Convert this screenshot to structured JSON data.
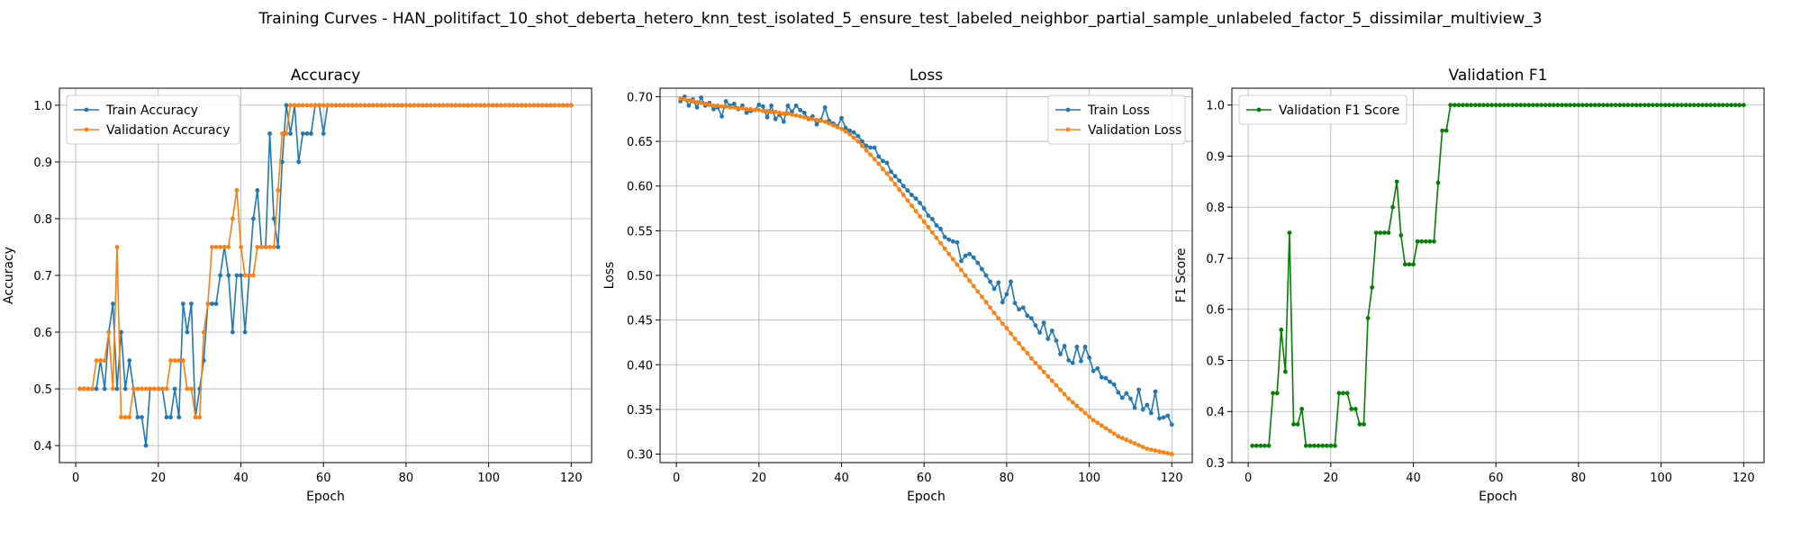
{
  "suptitle": "Training Curves - HAN_politifact_10_shot_deberta_hetero_knn_test_isolated_5_ensure_test_labeled_neighbor_partial_sample_unlabeled_factor_5_dissimilar_multiview_3",
  "colors": {
    "train": "#1f77b4",
    "validation": "#ff7f0e",
    "f1": "#008000",
    "grid": "#b0b0b0"
  },
  "chart_data": [
    {
      "type": "line",
      "title": "Accuracy",
      "xlabel": "Epoch",
      "ylabel": "Accuracy",
      "xlim": [
        -3.95,
        124.95
      ],
      "ylim": [
        0.37,
        1.03
      ],
      "xticks": [
        0,
        20,
        40,
        60,
        80,
        100,
        120
      ],
      "yticks": [
        0.4,
        0.5,
        0.6,
        0.7,
        0.8,
        0.9,
        1.0
      ],
      "ytick_labels": [
        "0.4",
        "0.5",
        "0.6",
        "0.7",
        "0.8",
        "0.9",
        "1.0"
      ],
      "grid": true,
      "legend_loc": "upper left",
      "x_start": 1,
      "series": [
        {
          "name": "Train Accuracy",
          "color": "#1f77b4",
          "values": [
            0.5,
            0.5,
            0.5,
            0.5,
            0.5,
            0.55,
            0.5,
            0.6,
            0.65,
            0.5,
            0.6,
            0.5,
            0.55,
            0.5,
            0.45,
            0.45,
            0.4,
            0.5,
            0.5,
            0.5,
            0.5,
            0.45,
            0.45,
            0.5,
            0.45,
            0.65,
            0.6,
            0.65,
            0.45,
            0.5,
            0.55,
            0.65,
            0.65,
            0.65,
            0.7,
            0.75,
            0.7,
            0.6,
            0.7,
            0.7,
            0.6,
            0.7,
            0.8,
            0.85,
            0.75,
            0.75,
            0.95,
            0.8,
            0.75,
            0.9,
            1.0,
            0.95,
            1.0,
            0.9,
            0.95,
            0.95,
            0.95,
            1.0,
            1.0,
            0.95,
            1.0,
            1.0,
            1.0,
            1.0,
            1.0,
            1.0,
            1.0,
            1.0,
            1.0,
            1.0,
            1.0,
            1.0,
            1.0,
            1.0,
            1.0,
            1.0,
            1.0,
            1.0,
            1.0,
            1.0,
            1.0,
            1.0,
            1.0,
            1.0,
            1.0,
            1.0,
            1.0,
            1.0,
            1.0,
            1.0,
            1.0,
            1.0,
            1.0,
            1.0,
            1.0,
            1.0,
            1.0,
            1.0,
            1.0,
            1.0,
            1.0,
            1.0,
            1.0,
            1.0,
            1.0,
            1.0,
            1.0,
            1.0,
            1.0,
            1.0,
            1.0,
            1.0,
            1.0,
            1.0,
            1.0,
            1.0,
            1.0,
            1.0,
            1.0,
            1.0
          ]
        },
        {
          "name": "Validation Accuracy",
          "color": "#ff7f0e",
          "values": [
            0.5,
            0.5,
            0.5,
            0.5,
            0.55,
            0.55,
            0.55,
            0.6,
            0.5,
            0.75,
            0.45,
            0.45,
            0.45,
            0.5,
            0.5,
            0.5,
            0.5,
            0.5,
            0.5,
            0.5,
            0.5,
            0.5,
            0.55,
            0.55,
            0.55,
            0.55,
            0.5,
            0.5,
            0.45,
            0.45,
            0.6,
            0.65,
            0.75,
            0.75,
            0.75,
            0.75,
            0.75,
            0.8,
            0.85,
            0.75,
            0.7,
            0.7,
            0.7,
            0.75,
            0.75,
            0.75,
            0.75,
            0.75,
            0.85,
            0.95,
            0.95,
            1.0,
            1.0,
            1.0,
            1.0,
            1.0,
            1.0,
            1.0,
            1.0,
            1.0,
            1.0,
            1.0,
            1.0,
            1.0,
            1.0,
            1.0,
            1.0,
            1.0,
            1.0,
            1.0,
            1.0,
            1.0,
            1.0,
            1.0,
            1.0,
            1.0,
            1.0,
            1.0,
            1.0,
            1.0,
            1.0,
            1.0,
            1.0,
            1.0,
            1.0,
            1.0,
            1.0,
            1.0,
            1.0,
            1.0,
            1.0,
            1.0,
            1.0,
            1.0,
            1.0,
            1.0,
            1.0,
            1.0,
            1.0,
            1.0,
            1.0,
            1.0,
            1.0,
            1.0,
            1.0,
            1.0,
            1.0,
            1.0,
            1.0,
            1.0,
            1.0,
            1.0,
            1.0,
            1.0,
            1.0,
            1.0,
            1.0,
            1.0,
            1.0,
            1.0
          ]
        }
      ]
    },
    {
      "type": "line",
      "title": "Loss",
      "xlabel": "Epoch",
      "ylabel": "Loss",
      "xlim": [
        -3.95,
        124.95
      ],
      "ylim": [
        0.2905,
        0.7095
      ],
      "xticks": [
        0,
        20,
        40,
        60,
        80,
        100,
        120
      ],
      "yticks": [
        0.3,
        0.35,
        0.4,
        0.45,
        0.5,
        0.55,
        0.6,
        0.65,
        0.7
      ],
      "ytick_labels": [
        "0.30",
        "0.35",
        "0.40",
        "0.45",
        "0.50",
        "0.55",
        "0.60",
        "0.65",
        "0.70"
      ],
      "grid": true,
      "legend_loc": "upper right",
      "x_start": 1,
      "series": [
        {
          "name": "Train Loss",
          "color": "#1f77b4",
          "values": [
            0.695,
            0.7,
            0.69,
            0.697,
            0.688,
            0.699,
            0.69,
            0.693,
            0.686,
            0.688,
            0.678,
            0.695,
            0.69,
            0.692,
            0.686,
            0.69,
            0.682,
            0.684,
            0.685,
            0.691,
            0.689,
            0.677,
            0.69,
            0.675,
            0.68,
            0.672,
            0.69,
            0.683,
            0.69,
            0.685,
            0.682,
            0.675,
            0.678,
            0.669,
            0.674,
            0.688,
            0.673,
            0.67,
            0.667,
            0.676,
            0.665,
            0.662,
            0.66,
            0.656,
            0.65,
            0.645,
            0.643,
            0.643,
            0.633,
            0.628,
            0.626,
            0.616,
            0.611,
            0.606,
            0.6,
            0.595,
            0.59,
            0.586,
            0.581,
            0.575,
            0.567,
            0.563,
            0.556,
            0.552,
            0.543,
            0.54,
            0.538,
            0.537,
            0.516,
            0.522,
            0.524,
            0.52,
            0.514,
            0.507,
            0.5,
            0.493,
            0.485,
            0.492,
            0.47,
            0.479,
            0.493,
            0.469,
            0.462,
            0.464,
            0.455,
            0.452,
            0.444,
            0.436,
            0.447,
            0.429,
            0.438,
            0.427,
            0.412,
            0.421,
            0.405,
            0.402,
            0.42,
            0.404,
            0.42,
            0.408,
            0.393,
            0.396,
            0.386,
            0.385,
            0.381,
            0.378,
            0.369,
            0.363,
            0.368,
            0.362,
            0.352,
            0.372,
            0.35,
            0.355,
            0.346,
            0.37,
            0.34,
            0.341,
            0.343,
            0.333
          ]
        },
        {
          "name": "Validation Loss",
          "color": "#ff7f0e",
          "values": [
            0.698,
            0.697,
            0.696,
            0.695,
            0.694,
            0.693,
            0.692,
            0.691,
            0.69,
            0.69,
            0.689,
            0.689,
            0.688,
            0.688,
            0.687,
            0.687,
            0.686,
            0.686,
            0.685,
            0.685,
            0.684,
            0.684,
            0.683,
            0.683,
            0.682,
            0.681,
            0.681,
            0.68,
            0.679,
            0.678,
            0.677,
            0.676,
            0.675,
            0.674,
            0.673,
            0.672,
            0.67,
            0.668,
            0.666,
            0.664,
            0.661,
            0.658,
            0.654,
            0.65,
            0.645,
            0.64,
            0.635,
            0.63,
            0.625,
            0.619,
            0.614,
            0.608,
            0.602,
            0.596,
            0.59,
            0.584,
            0.578,
            0.572,
            0.566,
            0.56,
            0.554,
            0.548,
            0.542,
            0.536,
            0.53,
            0.524,
            0.518,
            0.512,
            0.506,
            0.5,
            0.494,
            0.488,
            0.482,
            0.476,
            0.47,
            0.464,
            0.458,
            0.452,
            0.446,
            0.441,
            0.435,
            0.429,
            0.424,
            0.418,
            0.413,
            0.407,
            0.402,
            0.397,
            0.392,
            0.387,
            0.382,
            0.377,
            0.372,
            0.367,
            0.362,
            0.358,
            0.354,
            0.35,
            0.346,
            0.342,
            0.338,
            0.335,
            0.332,
            0.329,
            0.326,
            0.323,
            0.32,
            0.318,
            0.316,
            0.314,
            0.312,
            0.31,
            0.308,
            0.306,
            0.305,
            0.304,
            0.303,
            0.302,
            0.301,
            0.3
          ]
        }
      ]
    },
    {
      "type": "line",
      "title": "Validation F1",
      "xlabel": "Epoch",
      "ylabel": "F1 Score",
      "xlim": [
        -3.95,
        124.95
      ],
      "ylim": [
        0.3,
        1.033
      ],
      "xticks": [
        0,
        20,
        40,
        60,
        80,
        100,
        120
      ],
      "yticks": [
        0.3,
        0.4,
        0.5,
        0.6,
        0.7,
        0.8,
        0.9,
        1.0
      ],
      "ytick_labels": [
        "0.3",
        "0.4",
        "0.5",
        "0.6",
        "0.7",
        "0.8",
        "0.9",
        "1.0"
      ],
      "grid": true,
      "legend_loc": "upper left",
      "x_start": 1,
      "series": [
        {
          "name": "Validation F1 Score",
          "color": "#008000",
          "values": [
            0.333,
            0.333,
            0.333,
            0.333,
            0.333,
            0.436,
            0.436,
            0.56,
            0.478,
            0.75,
            0.375,
            0.375,
            0.405,
            0.333,
            0.333,
            0.333,
            0.333,
            0.333,
            0.333,
            0.333,
            0.333,
            0.436,
            0.436,
            0.436,
            0.405,
            0.405,
            0.375,
            0.375,
            0.583,
            0.643,
            0.75,
            0.75,
            0.75,
            0.75,
            0.8,
            0.85,
            0.745,
            0.688,
            0.688,
            0.688,
            0.733,
            0.733,
            0.733,
            0.733,
            0.733,
            0.848,
            0.95,
            0.95,
            1.0,
            1.0,
            1.0,
            1.0,
            1.0,
            1.0,
            1.0,
            1.0,
            1.0,
            1.0,
            1.0,
            1.0,
            1.0,
            1.0,
            1.0,
            1.0,
            1.0,
            1.0,
            1.0,
            1.0,
            1.0,
            1.0,
            1.0,
            1.0,
            1.0,
            1.0,
            1.0,
            1.0,
            1.0,
            1.0,
            1.0,
            1.0,
            1.0,
            1.0,
            1.0,
            1.0,
            1.0,
            1.0,
            1.0,
            1.0,
            1.0,
            1.0,
            1.0,
            1.0,
            1.0,
            1.0,
            1.0,
            1.0,
            1.0,
            1.0,
            1.0,
            1.0,
            1.0,
            1.0,
            1.0,
            1.0,
            1.0,
            1.0,
            1.0,
            1.0,
            1.0,
            1.0,
            1.0,
            1.0,
            1.0,
            1.0,
            1.0,
            1.0,
            1.0,
            1.0,
            1.0,
            1.0
          ]
        }
      ]
    }
  ]
}
